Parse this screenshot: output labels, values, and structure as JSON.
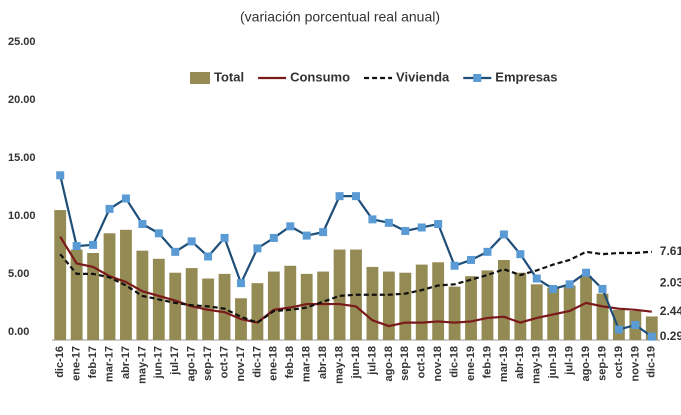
{
  "chart_data": {
    "type": "combo",
    "title": "(variación porcentual real anual)",
    "categories": [
      "dic-16",
      "ene-17",
      "feb-17",
      "mar-17",
      "abr-17",
      "may-17",
      "jun-17",
      "jul-17",
      "ago-17",
      "sep-17",
      "oct-17",
      "nov-17",
      "dic-17",
      "ene-18",
      "feb-18",
      "mar-18",
      "abr-18",
      "may-18",
      "jun-18",
      "jul-18",
      "ago-18",
      "sep-18",
      "oct-18",
      "nov-18",
      "dic-18",
      "ene-19",
      "feb-19",
      "mar-19",
      "abr-19",
      "may-19",
      "jun-19",
      "jul-19",
      "ago-19",
      "sep-19",
      "oct-19",
      "nov-19",
      "dic-19"
    ],
    "series": [
      {
        "name": "Total",
        "type": "bar",
        "color": "#948a54",
        "label_color": "#a37f1a",
        "values": [
          11.2,
          7.8,
          7.5,
          9.2,
          9.5,
          7.7,
          7.0,
          5.8,
          6.2,
          5.3,
          5.7,
          3.6,
          4.9,
          5.9,
          6.4,
          5.7,
          5.9,
          7.8,
          7.8,
          6.3,
          5.9,
          5.8,
          6.5,
          6.7,
          4.6,
          5.5,
          6.0,
          6.9,
          5.8,
          4.8,
          4.5,
          4.7,
          5.5,
          4.0,
          2.6,
          2.5,
          2.03
        ]
      },
      {
        "name": "Consumo",
        "type": "line",
        "color": "#7b1a1a",
        "label_color": "#c00000",
        "values": [
          8.9,
          6.6,
          6.3,
          5.5,
          5.0,
          4.2,
          3.8,
          3.4,
          2.9,
          2.6,
          2.4,
          1.8,
          1.5,
          2.6,
          2.8,
          3.1,
          3.1,
          3.1,
          2.9,
          1.7,
          1.2,
          1.5,
          1.5,
          1.6,
          1.5,
          1.6,
          1.9,
          2.0,
          1.5,
          1.9,
          2.2,
          2.5,
          3.2,
          2.9,
          2.7,
          2.6,
          2.44
        ]
      },
      {
        "name": "Vivienda",
        "type": "line",
        "dashed": true,
        "color": "#111111",
        "label_color": "#111111",
        "values": [
          7.4,
          5.7,
          5.7,
          5.4,
          4.7,
          3.8,
          3.5,
          3.2,
          3.0,
          2.9,
          2.7,
          2.0,
          1.5,
          2.5,
          2.6,
          2.8,
          3.3,
          3.8,
          3.9,
          3.9,
          3.9,
          4.0,
          4.3,
          4.7,
          4.8,
          5.2,
          5.6,
          6.1,
          5.6,
          6.0,
          6.5,
          6.9,
          7.6,
          7.4,
          7.5,
          7.5,
          7.61
        ]
      },
      {
        "name": "Empresas",
        "type": "line",
        "marker": "square",
        "color": "#1f4e79",
        "marker_color": "#5b9bd5",
        "label_color": "#1f3864",
        "values": [
          14.2,
          8.1,
          8.2,
          11.3,
          12.2,
          10.0,
          9.2,
          7.6,
          8.5,
          7.2,
          8.8,
          4.9,
          7.9,
          8.8,
          9.8,
          9.0,
          9.3,
          12.4,
          12.4,
          10.4,
          10.1,
          9.4,
          9.7,
          10.0,
          6.4,
          6.9,
          7.6,
          9.1,
          7.4,
          5.3,
          4.4,
          4.8,
          5.8,
          4.4,
          0.9,
          1.3,
          0.29
        ]
      }
    ],
    "ylim": [
      0,
      25
    ],
    "yticks": [
      {
        "value": 0,
        "label": "0.00"
      },
      {
        "value": 5,
        "label": "5.00"
      },
      {
        "value": 10,
        "label": "10.00"
      },
      {
        "value": 15,
        "label": "15.00"
      },
      {
        "value": 20,
        "label": "20.00"
      },
      {
        "value": 25,
        "label": "25.00"
      }
    ],
    "grid": false,
    "legend": "top"
  }
}
